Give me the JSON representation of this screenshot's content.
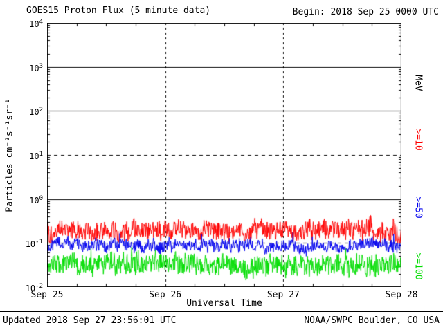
{
  "header": {
    "title": "GOES15 Proton Flux (5 minute data)",
    "begin_label": "Begin: 2018 Sep 25 0000 UTC"
  },
  "footer": {
    "updated": "Updated 2018 Sep 27 23:56:01 UTC",
    "credit": "NOAA/SWPC Boulder, CO USA"
  },
  "colors": {
    "background": "#ffffff",
    "axis": "#000000",
    "ge10": "#ff0000",
    "ge50": "#0000ee",
    "ge100": "#00dd00"
  },
  "right_axis": {
    "unit_label": "MeV",
    "series_labels": [
      {
        "text": ">=10",
        "color": "#ff0000"
      },
      {
        "text": ">=50",
        "color": "#0000ee"
      },
      {
        "text": ">=100",
        "color": "#00dd00"
      }
    ]
  },
  "chart_data": {
    "type": "line",
    "title": "GOES15 Proton Flux (5 minute data)",
    "subtitle": "Begin: 2018 Sep 25 0000 UTC",
    "xlabel": "Universal Time",
    "ylabel": "Particles cm⁻²s⁻¹sr⁻¹",
    "x_ticks": [
      "Sep 25",
      "Sep 26",
      "Sep 27",
      "Sep 28"
    ],
    "x_range_days": 3,
    "points_per_day": 288,
    "yscale": "log",
    "ylim": [
      0.01,
      10000
    ],
    "ylog_min": -2,
    "ylog_max": 4,
    "y_tick_exponents": [
      4,
      3,
      2,
      1,
      0,
      -1,
      -2
    ],
    "grid_hlines": [
      {
        "level": 1000,
        "style": "solid"
      },
      {
        "level": 100,
        "style": "solid"
      },
      {
        "level": 10,
        "style": "dashed"
      },
      {
        "level": 1,
        "style": "solid"
      },
      {
        "level": 0.1,
        "style": "dashed"
      }
    ],
    "day_boundary_vlines": {
      "style": "dashed",
      "positions_days": [
        1,
        2
      ]
    },
    "legend_position": "right",
    "series": [
      {
        "name": ">=10 MeV",
        "color": "#ff0000",
        "seed": 101,
        "log10_mean": -0.72,
        "log10_noise": 0.2,
        "approx_flux_mean": 0.19,
        "approx_flux_range": [
          0.1,
          0.5
        ]
      },
      {
        "name": ">=50 MeV",
        "color": "#0000ee",
        "seed": 202,
        "log10_mean": -1.05,
        "log10_noise": 0.12,
        "approx_flux_mean": 0.09,
        "approx_flux_range": [
          0.06,
          0.14
        ]
      },
      {
        "name": ">=100 MeV",
        "color": "#00dd00",
        "seed": 303,
        "log10_mean": -1.5,
        "log10_noise": 0.22,
        "approx_flux_mean": 0.032,
        "approx_flux_range": [
          0.015,
          0.07
        ]
      }
    ]
  }
}
